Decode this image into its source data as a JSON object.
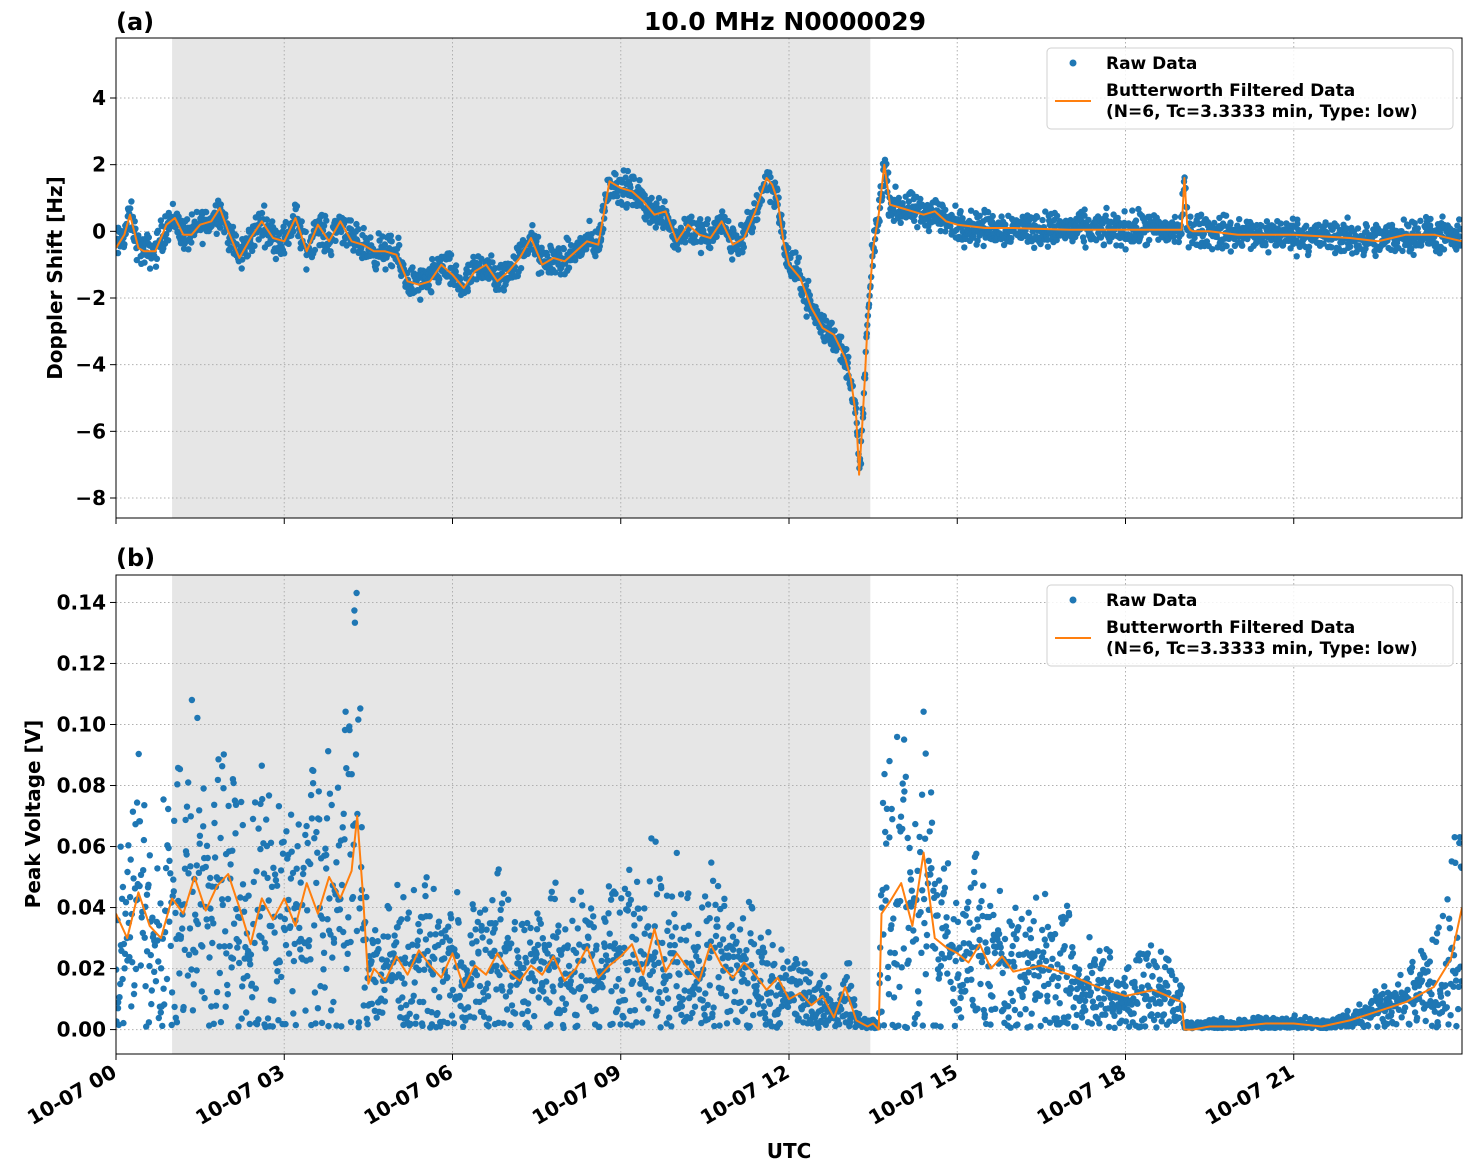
{
  "figure": {
    "title": "10.0 MHz N0000029",
    "xlabel": "UTC",
    "x_range_hours": [
      0,
      24
    ],
    "x_ticks": [
      {
        "hour": 0,
        "label": "10-07 00"
      },
      {
        "hour": 3,
        "label": "10-07 03"
      },
      {
        "hour": 6,
        "label": "10-07 06"
      },
      {
        "hour": 9,
        "label": "10-07 09"
      },
      {
        "hour": 12,
        "label": "10-07 12"
      },
      {
        "hour": 15,
        "label": "10-07 15"
      },
      {
        "hour": 18,
        "label": "10-07 18"
      },
      {
        "hour": 21,
        "label": "10-07 21"
      }
    ],
    "shaded_region_hours": [
      1.0,
      13.45
    ],
    "colors": {
      "raw": "#1f77b4",
      "filtered": "#ff7f0e",
      "shade": "#e6e6e6"
    }
  },
  "chart_data": [
    {
      "type": "scatter",
      "panel_label": "(a)",
      "ylabel": "Doppler Shift [Hz]",
      "ylim": [
        -8.6,
        5.8
      ],
      "yticks": [
        4,
        2,
        0,
        -2,
        -4,
        -6,
        -8
      ],
      "ytick_labels": [
        "4",
        "2",
        "0",
        "−2",
        "−4",
        "−6",
        "−8"
      ],
      "grid": true,
      "legend_position": "upper right",
      "legend": [
        "Raw Data",
        "Butterworth Filtered Data",
        "(N=6, Tc=3.3333 min, Type: low)"
      ],
      "raw_spread": 0.5,
      "series": [
        {
          "name": "Butterworth Filtered Data",
          "x": [
            0,
            0.15,
            0.25,
            0.4,
            0.5,
            0.7,
            0.9,
            1.05,
            1.2,
            1.35,
            1.5,
            1.7,
            1.85,
            2.0,
            2.2,
            2.4,
            2.6,
            2.8,
            3.0,
            3.2,
            3.4,
            3.6,
            3.8,
            4.0,
            4.2,
            4.4,
            4.6,
            4.8,
            5.0,
            5.2,
            5.4,
            5.6,
            5.8,
            6.0,
            6.2,
            6.4,
            6.6,
            6.8,
            7.0,
            7.2,
            7.4,
            7.6,
            7.8,
            8.0,
            8.2,
            8.4,
            8.6,
            8.8,
            8.9,
            9.0,
            9.2,
            9.4,
            9.6,
            9.8,
            10.0,
            10.2,
            10.4,
            10.6,
            10.8,
            11.0,
            11.2,
            11.4,
            11.6,
            11.7,
            11.8,
            11.9,
            12.0,
            12.2,
            12.4,
            12.6,
            12.8,
            13.0,
            13.1,
            13.2,
            13.25,
            13.3,
            13.35,
            13.4,
            13.5,
            13.6,
            13.7,
            13.8,
            14.0,
            14.2,
            14.4,
            14.6,
            14.8,
            15.0,
            15.5,
            16.0,
            17.0,
            18.0,
            19.0,
            19.05,
            19.1,
            19.15,
            19.2,
            19.5,
            20.0,
            21.0,
            22.0,
            22.5,
            23.0,
            23.5,
            24.0
          ],
          "y": [
            -0.5,
            -0.1,
            0.5,
            -0.5,
            -0.6,
            -0.6,
            0.2,
            0.4,
            -0.1,
            -0.1,
            0.2,
            0.3,
            0.7,
            0.0,
            -0.8,
            -0.2,
            0.3,
            -0.2,
            -0.3,
            0.4,
            -0.6,
            0.2,
            -0.3,
            0.3,
            -0.3,
            -0.4,
            -0.6,
            -0.6,
            -0.7,
            -1.5,
            -1.6,
            -1.5,
            -1.0,
            -1.3,
            -1.7,
            -1.2,
            -1.0,
            -1.5,
            -1.2,
            -0.8,
            -0.2,
            -1.0,
            -0.8,
            -0.9,
            -0.6,
            -0.3,
            -0.4,
            1.5,
            1.4,
            1.3,
            1.2,
            0.9,
            0.5,
            0.6,
            -0.3,
            0.2,
            -0.1,
            -0.2,
            0.3,
            -0.4,
            -0.2,
            0.6,
            1.6,
            1.4,
            0.9,
            -0.3,
            -1.0,
            -1.4,
            -2.3,
            -2.9,
            -3.1,
            -3.8,
            -4.4,
            -5.6,
            -7.3,
            -6.0,
            -4.5,
            -2.8,
            -0.5,
            0.5,
            2.0,
            0.8,
            0.7,
            0.6,
            0.5,
            0.6,
            0.3,
            0.2,
            0.1,
            0.1,
            0.05,
            0.05,
            0.05,
            1.6,
            0.2,
            0.05,
            0.0,
            0.0,
            -0.1,
            -0.1,
            -0.2,
            -0.3,
            -0.1,
            -0.1,
            -0.3
          ]
        }
      ]
    },
    {
      "type": "scatter",
      "panel_label": "(b)",
      "ylabel": "Peak Voltage [V]",
      "ylim": [
        -0.008,
        0.149
      ],
      "yticks": [
        0.14,
        0.12,
        0.1,
        0.08,
        0.06,
        0.04,
        0.02,
        0.0
      ],
      "ytick_labels": [
        "0.14",
        "0.12",
        "0.10",
        "0.08",
        "0.06",
        "0.04",
        "0.02",
        "0.00"
      ],
      "grid": true,
      "legend_position": "upper right",
      "legend": [
        "Raw Data",
        "Butterworth Filtered Data",
        "(N=6, Tc=3.3333 min, Type: low)"
      ],
      "series": [
        {
          "name": "Butterworth Filtered Data",
          "x": [
            0,
            0.2,
            0.4,
            0.6,
            0.8,
            1.0,
            1.2,
            1.4,
            1.6,
            1.8,
            2.0,
            2.2,
            2.4,
            2.6,
            2.8,
            3.0,
            3.2,
            3.4,
            3.6,
            3.8,
            4.0,
            4.2,
            4.3,
            4.4,
            4.5,
            4.6,
            4.8,
            5.0,
            5.2,
            5.4,
            5.6,
            5.8,
            6.0,
            6.2,
            6.4,
            6.6,
            6.8,
            7.0,
            7.2,
            7.4,
            7.6,
            7.8,
            8.0,
            8.2,
            8.4,
            8.6,
            8.8,
            9.0,
            9.2,
            9.4,
            9.6,
            9.8,
            10.0,
            10.2,
            10.4,
            10.6,
            10.8,
            11.0,
            11.2,
            11.4,
            11.6,
            11.8,
            12.0,
            12.2,
            12.4,
            12.6,
            12.8,
            13.0,
            13.2,
            13.4,
            13.5,
            13.6,
            13.65,
            13.8,
            14.0,
            14.2,
            14.4,
            14.6,
            14.8,
            15.0,
            15.2,
            15.4,
            15.6,
            15.8,
            16.0,
            16.5,
            17.0,
            17.5,
            18.0,
            18.5,
            19.0,
            19.05,
            19.2,
            19.5,
            20.0,
            20.5,
            21.0,
            21.5,
            22.0,
            22.5,
            23.0,
            23.5,
            23.8,
            24.0
          ],
          "y": [
            0.038,
            0.03,
            0.045,
            0.034,
            0.03,
            0.043,
            0.038,
            0.05,
            0.039,
            0.047,
            0.051,
            0.04,
            0.028,
            0.043,
            0.036,
            0.043,
            0.034,
            0.048,
            0.038,
            0.05,
            0.043,
            0.052,
            0.07,
            0.045,
            0.015,
            0.02,
            0.016,
            0.024,
            0.018,
            0.026,
            0.021,
            0.017,
            0.025,
            0.014,
            0.021,
            0.018,
            0.025,
            0.019,
            0.016,
            0.021,
            0.018,
            0.024,
            0.016,
            0.02,
            0.027,
            0.017,
            0.021,
            0.024,
            0.028,
            0.018,
            0.033,
            0.019,
            0.025,
            0.02,
            0.016,
            0.028,
            0.021,
            0.017,
            0.022,
            0.018,
            0.013,
            0.017,
            0.01,
            0.012,
            0.008,
            0.011,
            0.004,
            0.014,
            0.003,
            0.001,
            0.002,
            0.0,
            0.038,
            0.042,
            0.048,
            0.034,
            0.058,
            0.03,
            0.027,
            0.025,
            0.022,
            0.028,
            0.02,
            0.024,
            0.019,
            0.021,
            0.018,
            0.014,
            0.011,
            0.013,
            0.009,
            0.0,
            0.0,
            0.001,
            0.001,
            0.002,
            0.002,
            0.001,
            0.003,
            0.006,
            0.009,
            0.014,
            0.023,
            0.04
          ]
        }
      ]
    }
  ]
}
